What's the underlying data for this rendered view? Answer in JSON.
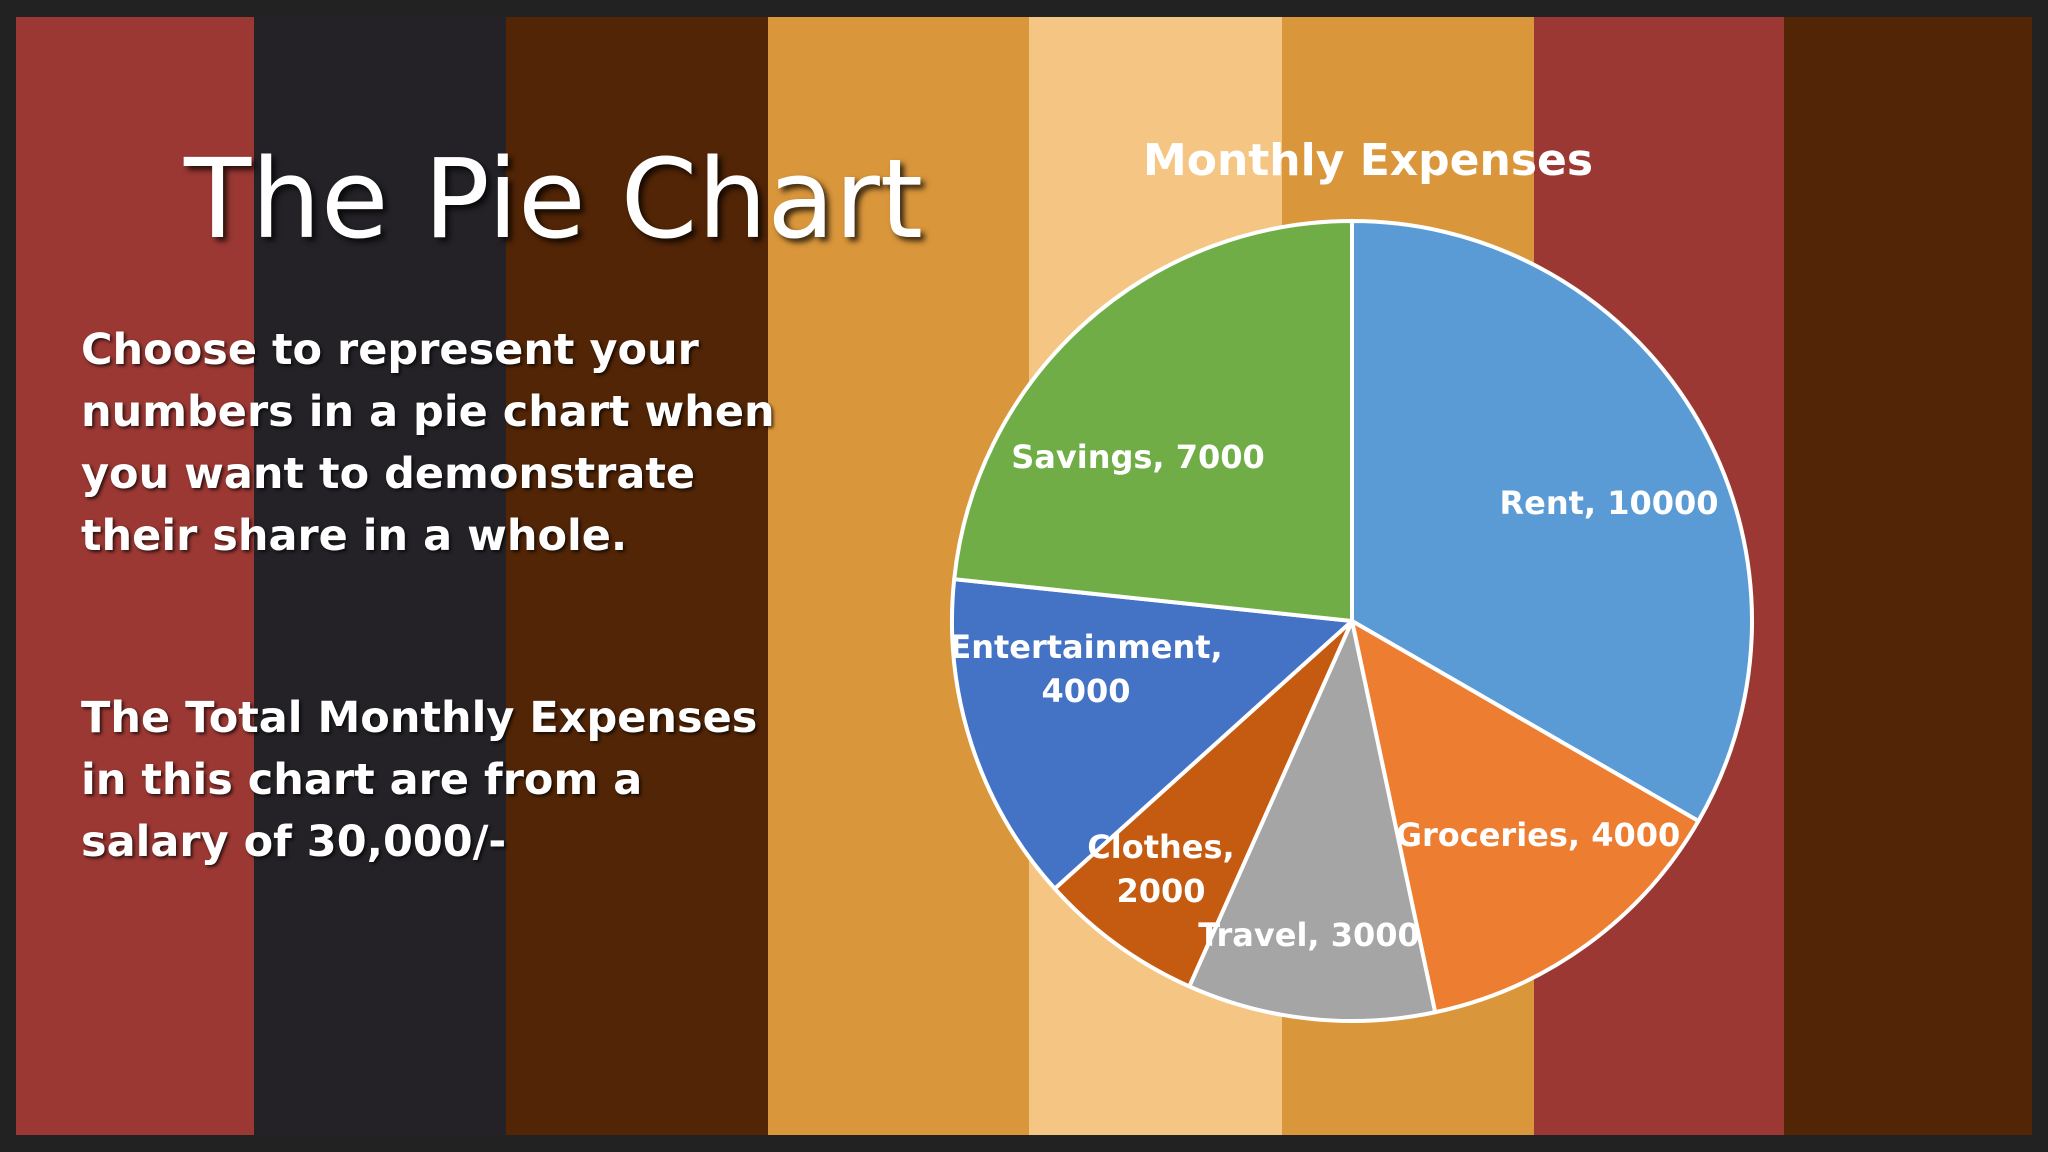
{
  "slide": {
    "heading": "The Pie Chart",
    "paragraph_1": "Choose to represent your numbers in a pie chart when you want to demonstrate their share in a whole.",
    "paragraph_2": "The Total Monthly Expenses in this chart are from a salary of 30,000/-"
  },
  "background_stripes": [
    "#9B3833",
    "#242227",
    "#522506",
    "#D9963B",
    "#F5C683",
    "#D9963B",
    "#9B3833",
    "#522506"
  ],
  "chart_data": {
    "type": "pie",
    "title": "Monthly Expenses",
    "data_labels": "category, value",
    "slices": [
      {
        "label": "Rent",
        "value": 10000,
        "color": "#5B9BD5",
        "label_lines": [
          "Rent, 10000"
        ]
      },
      {
        "label": "Groceries",
        "value": 4000,
        "color": "#ED7D31",
        "label_lines": [
          "Groceries, 4000"
        ]
      },
      {
        "label": "Travel",
        "value": 3000,
        "color": "#A5A5A5",
        "label_lines": [
          "Travel, 3000"
        ]
      },
      {
        "label": "Clothes",
        "value": 2000,
        "color": "#C55A11",
        "label_lines": [
          "Clothes,",
          "2000"
        ]
      },
      {
        "label": "Entertainment",
        "value": 4000,
        "color": "#4472C4",
        "label_lines": [
          "Entertainment,",
          "4000"
        ]
      },
      {
        "label": "Savings",
        "value": 7000,
        "color": "#70AD47",
        "label_lines": [
          "Savings, 7000"
        ]
      }
    ]
  }
}
